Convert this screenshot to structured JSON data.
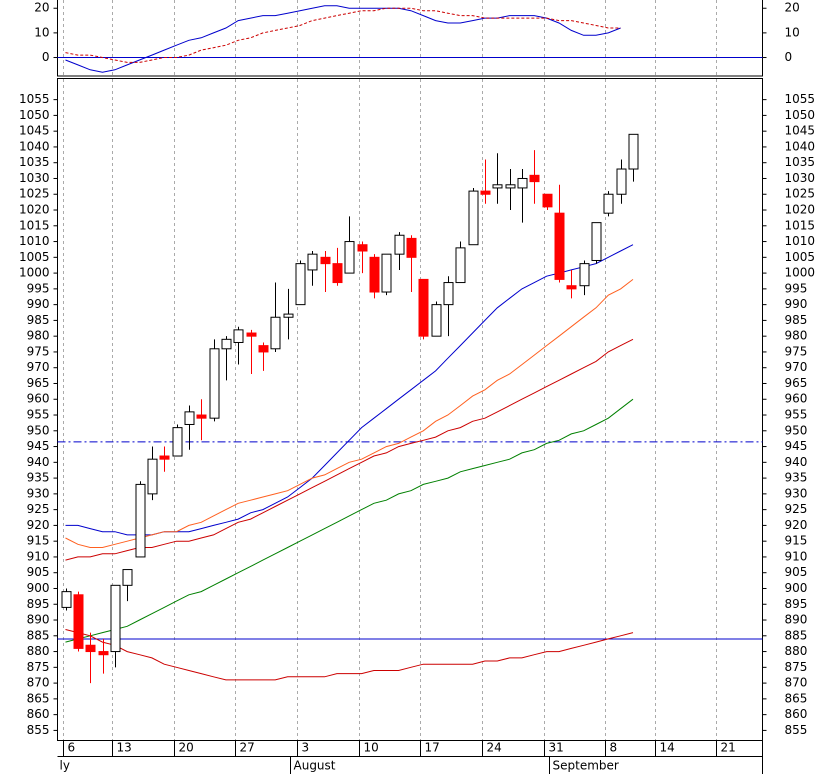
{
  "chart_data": [
    {
      "type": "line",
      "panel": "indicator",
      "ylim": [
        -7.5,
        23.75
      ],
      "yticks": [
        0,
        10,
        20
      ],
      "hlines": [
        {
          "value": 0,
          "color": "#0000cc",
          "style": "solid"
        }
      ],
      "series": [
        {
          "color": "#0000cc",
          "style": "solid",
          "values": [
            -1,
            -3,
            -5,
            -6,
            -5,
            -3,
            -1,
            1,
            3,
            5,
            7,
            8,
            10,
            12,
            15,
            16,
            17,
            17,
            18,
            19,
            20,
            21,
            21,
            20,
            20,
            20,
            20,
            20,
            19,
            17,
            15,
            14,
            14,
            15,
            16,
            16,
            17,
            17,
            17,
            16,
            14,
            11,
            9,
            9,
            10,
            12
          ]
        },
        {
          "color": "#cc0000",
          "style": "dashed",
          "values": [
            2,
            1,
            1,
            0,
            -1,
            -2,
            -2,
            -1,
            0,
            0,
            1,
            3,
            4,
            5,
            7,
            8,
            10,
            11,
            12,
            13,
            15,
            16,
            17,
            18,
            19,
            19,
            20,
            20,
            20,
            19,
            19,
            18,
            17,
            17,
            16,
            16,
            16,
            16,
            16,
            16,
            15,
            15,
            14,
            13,
            12,
            12
          ]
        }
      ]
    },
    {
      "type": "candlestick",
      "panel": "price",
      "ylim": [
        851.8,
        1061.7
      ],
      "yticks": [
        855,
        860,
        865,
        870,
        875,
        880,
        885,
        890,
        895,
        900,
        905,
        910,
        915,
        920,
        925,
        930,
        935,
        940,
        945,
        950,
        955,
        960,
        965,
        970,
        975,
        980,
        985,
        990,
        995,
        1000,
        1005,
        1010,
        1015,
        1020,
        1025,
        1030,
        1035,
        1040,
        1045,
        1050,
        1055
      ],
      "xlim": [
        -0.65,
        56.5
      ],
      "xticks": [
        {
          "value": 0,
          "label": "6"
        },
        {
          "value": 4,
          "label": "13"
        },
        {
          "value": 9,
          "label": "20"
        },
        {
          "value": 14,
          "label": "27"
        },
        {
          "value": 19,
          "label": "3"
        },
        {
          "value": 24,
          "label": "10"
        },
        {
          "value": 29,
          "label": "17"
        },
        {
          "value": 34,
          "label": "24"
        },
        {
          "value": 39,
          "label": "31"
        },
        {
          "value": 44,
          "label": "8"
        },
        {
          "value": 48,
          "label": "14"
        },
        {
          "value": 53,
          "label": "21"
        }
      ],
      "month_labels": [
        {
          "value": 0,
          "label": "ly"
        },
        {
          "value": 19,
          "label": "August"
        },
        {
          "value": 40,
          "label": "September"
        }
      ],
      "grid": true,
      "up_color": "#ffffff",
      "down_color": "#ff0000",
      "open": [
        894,
        898,
        882,
        880,
        880,
        901,
        910,
        930,
        942,
        942,
        952,
        955,
        954,
        976,
        978,
        981,
        977,
        976,
        986,
        990,
        1001,
        1005,
        1003,
        1000,
        1009,
        1005,
        994,
        1006,
        1011,
        998,
        980,
        990,
        997,
        1009,
        1026,
        1027,
        1027,
        1027,
        1031,
        1025,
        1019,
        996,
        996,
        1004,
        1019,
        1025,
        1033
      ],
      "close": [
        899,
        881,
        880,
        879,
        901,
        906,
        933,
        941,
        941,
        951,
        956,
        954,
        976,
        979,
        982,
        980,
        975,
        986,
        987,
        1003,
        1006,
        1003,
        997,
        1010,
        1007,
        994,
        1006,
        1012,
        1005,
        980,
        990,
        997,
        1008,
        1026,
        1025,
        1028,
        1028,
        1030,
        1029,
        1021,
        998,
        995,
        1003,
        1016,
        1025,
        1033,
        1044
      ],
      "high": [
        900,
        899,
        886,
        884,
        901,
        906,
        934,
        945,
        945,
        952,
        958,
        960,
        979,
        980,
        983,
        982,
        978,
        997,
        995,
        1004,
        1007,
        1007,
        1008,
        1018,
        1010,
        1006,
        1006,
        1013,
        1012,
        998,
        991,
        999,
        1010,
        1027,
        1036,
        1038,
        1033,
        1033,
        1039,
        1025,
        1028,
        1001,
        1004,
        1016,
        1026,
        1036,
        1044
      ],
      "low": [
        893,
        880,
        870,
        873,
        875,
        896,
        910,
        928,
        937,
        942,
        944,
        947,
        953,
        966,
        971,
        968,
        969,
        975,
        979,
        990,
        996,
        994,
        996,
        1000,
        1000,
        992,
        993,
        1001,
        994,
        979,
        980,
        980,
        997,
        1009,
        1022,
        1022,
        1020,
        1016,
        1022,
        1020,
        997,
        992,
        993,
        1003,
        1018,
        1022,
        1029
      ],
      "hlines": [
        {
          "value": 946.5,
          "color": "#0000cc",
          "style": "dashdot"
        },
        {
          "value": 884,
          "color": "#0000cc",
          "style": "solid"
        }
      ],
      "series": [
        {
          "color": "#0000cc",
          "values": [
            920,
            920,
            919,
            918,
            918,
            917,
            917,
            917,
            918,
            918,
            918,
            919,
            920,
            921,
            922,
            924,
            925,
            927,
            929,
            932,
            935,
            939,
            943,
            947,
            951,
            954,
            957,
            960,
            963,
            966,
            969,
            973,
            977,
            981,
            985,
            989,
            992,
            995,
            997,
            999,
            1000,
            1001,
            1002,
            1003,
            1005,
            1007,
            1009
          ]
        },
        {
          "color": "#ff6020",
          "values": [
            916,
            914,
            913,
            913,
            914,
            915,
            916,
            917,
            918,
            918,
            920,
            921,
            923,
            925,
            927,
            928,
            929,
            930,
            931,
            933,
            935,
            936,
            938,
            940,
            941,
            943,
            945,
            946,
            948,
            950,
            953,
            955,
            958,
            961,
            963,
            966,
            968,
            971,
            974,
            977,
            980,
            983,
            986,
            989,
            993,
            995,
            998
          ]
        },
        {
          "color": "#cc0000",
          "values": [
            909,
            910,
            910,
            911,
            911,
            912,
            913,
            913,
            914,
            915,
            915,
            916,
            917,
            919,
            921,
            922,
            924,
            926,
            928,
            930,
            932,
            934,
            936,
            938,
            940,
            942,
            943,
            945,
            946,
            947,
            948,
            950,
            951,
            953,
            954,
            956,
            958,
            960,
            962,
            964,
            966,
            968,
            970,
            972,
            975,
            977,
            979
          ]
        },
        {
          "color": "#008000",
          "values": [
            883,
            884,
            885,
            886,
            887,
            888,
            890,
            892,
            894,
            896,
            898,
            899,
            901,
            903,
            905,
            907,
            909,
            911,
            913,
            915,
            917,
            919,
            921,
            923,
            925,
            927,
            928,
            930,
            931,
            933,
            934,
            935,
            937,
            938,
            939,
            940,
            941,
            943,
            944,
            946,
            947,
            949,
            950,
            952,
            954,
            957,
            960
          ]
        },
        {
          "color": "#cc0000",
          "values": [
            887,
            886,
            885,
            883,
            882,
            880,
            879,
            878,
            876,
            875,
            874,
            873,
            872,
            871,
            871,
            871,
            871,
            871,
            872,
            872,
            872,
            872,
            873,
            873,
            873,
            874,
            874,
            874,
            875,
            876,
            876,
            876,
            876,
            876,
            877,
            877,
            878,
            878,
            879,
            880,
            880,
            881,
            882,
            883,
            884,
            885,
            886
          ]
        }
      ]
    }
  ]
}
